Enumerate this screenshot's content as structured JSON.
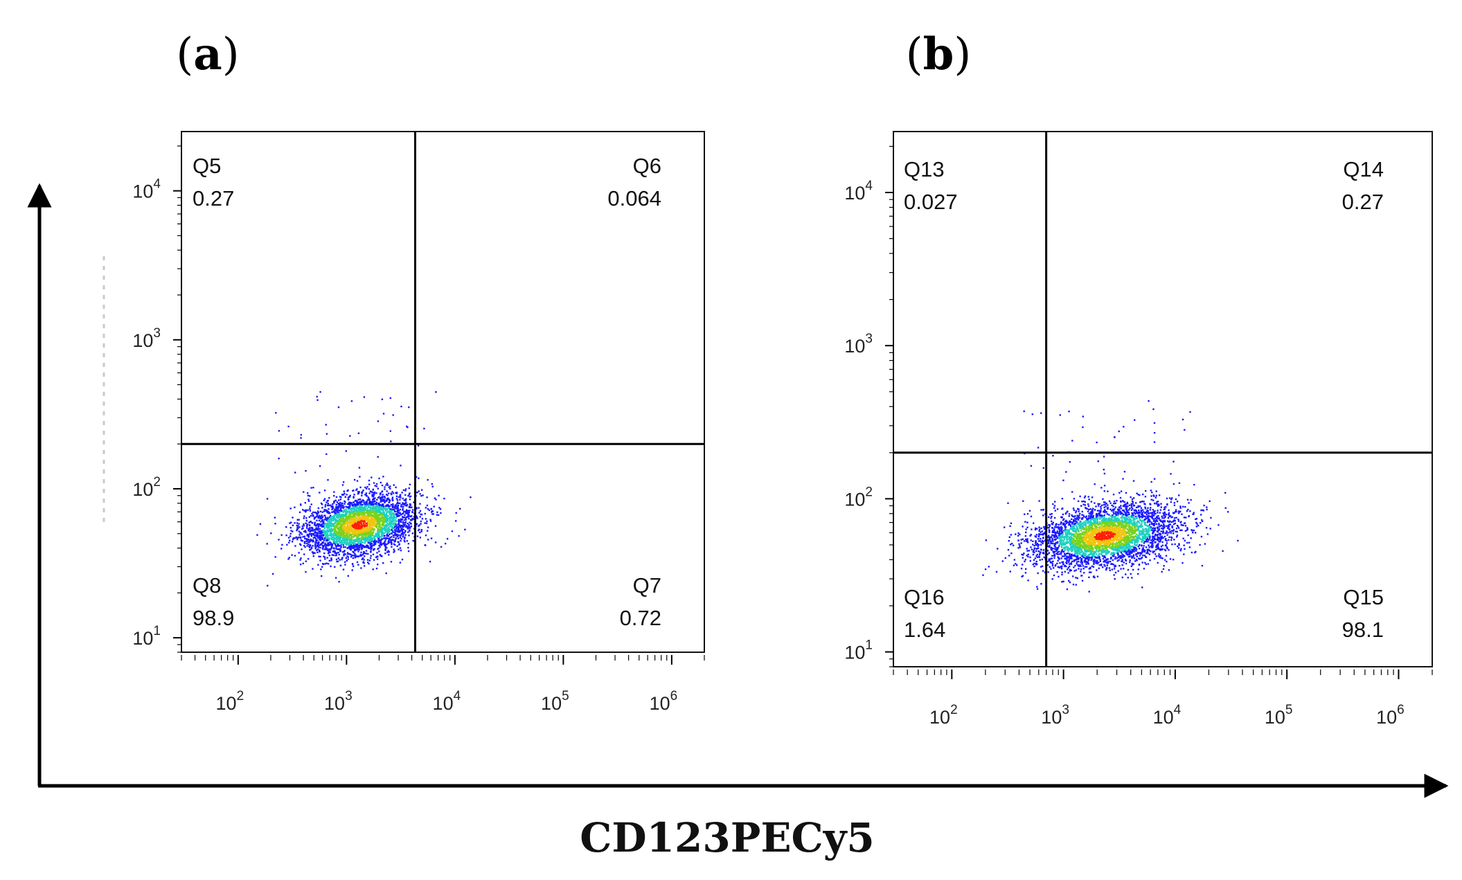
{
  "chart_data": {
    "type": "scatter",
    "subtype": "flow-cytometry-pseudocolor-density",
    "x_axis_title": "CD123PECy5",
    "y_axis_title": "",
    "panels": [
      {
        "label": "(a)",
        "label_letter": "a",
        "xscale": "log",
        "yscale": "log",
        "xlim": [
          30,
          2000000
        ],
        "ylim": [
          8,
          25000
        ],
        "x_ticks": [
          {
            "base": "10",
            "exp": "2"
          },
          {
            "base": "10",
            "exp": "3"
          },
          {
            "base": "10",
            "exp": "4"
          },
          {
            "base": "10",
            "exp": "5"
          },
          {
            "base": "10",
            "exp": "6"
          }
        ],
        "y_ticks": [
          {
            "base": "10",
            "exp": "1"
          },
          {
            "base": "10",
            "exp": "2"
          },
          {
            "base": "10",
            "exp": "3"
          },
          {
            "base": "10",
            "exp": "4"
          }
        ],
        "gate_x": 4300,
        "gate_y": 200,
        "quadrants": [
          {
            "name": "Q5",
            "value": "0.27",
            "position": "top-left"
          },
          {
            "name": "Q6",
            "value": "0.064",
            "position": "top-right"
          },
          {
            "name": "Q7",
            "value": "0.72",
            "position": "bottom-right"
          },
          {
            "name": "Q8",
            "value": "98.9",
            "position": "bottom-left"
          }
        ],
        "population": {
          "center_x": 1300,
          "center_y": 58,
          "spread_x_log": 0.27,
          "spread_y_log": 0.12,
          "events": 3500
        }
      },
      {
        "label": "(b)",
        "label_letter": "b",
        "xscale": "log",
        "yscale": "log",
        "xlim": [
          30,
          2000000
        ],
        "ylim": [
          8,
          25000
        ],
        "x_ticks": [
          {
            "base": "10",
            "exp": "2"
          },
          {
            "base": "10",
            "exp": "3"
          },
          {
            "base": "10",
            "exp": "4"
          },
          {
            "base": "10",
            "exp": "5"
          },
          {
            "base": "10",
            "exp": "6"
          }
        ],
        "y_ticks": [
          {
            "base": "10",
            "exp": "1"
          },
          {
            "base": "10",
            "exp": "2"
          },
          {
            "base": "10",
            "exp": "3"
          },
          {
            "base": "10",
            "exp": "4"
          }
        ],
        "gate_x": 700,
        "gate_y": 200,
        "quadrants": [
          {
            "name": "Q13",
            "value": "0.027",
            "position": "top-left"
          },
          {
            "name": "Q14",
            "value": "0.27",
            "position": "top-right"
          },
          {
            "name": "Q15",
            "value": "98.1",
            "position": "bottom-right"
          },
          {
            "name": "Q16",
            "value": "1.64",
            "position": "bottom-left"
          }
        ],
        "population": {
          "center_x": 2300,
          "center_y": 58,
          "spread_x_log": 0.33,
          "spread_y_log": 0.12,
          "events": 3800
        }
      }
    ],
    "colors": {
      "low": "#1a1aff",
      "mid": "#1fd1c0",
      "high": "#7bd21e",
      "peak": "#ff1f00",
      "axis": "#000000"
    }
  }
}
